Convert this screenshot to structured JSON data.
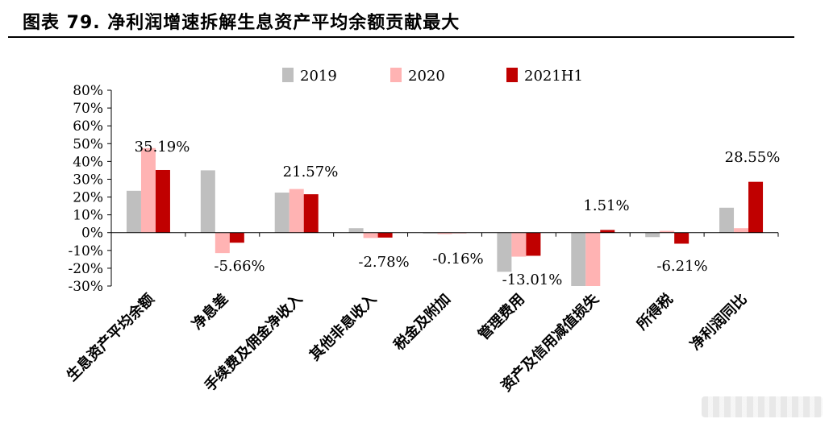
{
  "title": "图表 79. 净利润增速拆解生息资产平均余额贡献最大",
  "chart_data": {
    "type": "bar",
    "categories": [
      "生息资产平均余额",
      "净息差",
      "手续费及佣金净收入",
      "其他非息收入",
      "税金及附加",
      "管理费用",
      "资产及信用减值损失",
      "所得税",
      "净利润同比"
    ],
    "series": [
      {
        "name": "2019",
        "color": "#bfbfbf",
        "values": [
          23.5,
          35.0,
          22.5,
          2.5,
          -0.5,
          -22.0,
          -30.0,
          -2.5,
          14.0
        ]
      },
      {
        "name": "2020",
        "color": "#ffb3b3",
        "values": [
          47.5,
          -11.5,
          24.5,
          -3.0,
          -0.8,
          -13.5,
          -30.0,
          1.0,
          2.5
        ]
      },
      {
        "name": "2021H1",
        "color": "#c00000",
        "values": [
          35.19,
          -5.66,
          21.57,
          -2.78,
          -0.16,
          -13.01,
          1.51,
          -6.21,
          28.55
        ]
      }
    ],
    "yticks": [
      "80%",
      "70%",
      "60%",
      "50%",
      "40%",
      "30%",
      "20%",
      "10%",
      "0%",
      "-10%",
      "-20%",
      "-30%"
    ],
    "ylim": [
      -30,
      80
    ],
    "annotations": [
      {
        "label": "35.19%",
        "category": 0,
        "value": 35.19
      },
      {
        "label": "-5.66%",
        "category": 1,
        "value": -5.66
      },
      {
        "label": "21.57%",
        "category": 2,
        "value": 21.57
      },
      {
        "label": "-2.78%",
        "category": 3,
        "value": -2.78
      },
      {
        "label": "-0.16%",
        "category": 4,
        "value": -0.16
      },
      {
        "label": "-13.01%",
        "category": 5,
        "value": -13.01
      },
      {
        "label": "1.51%",
        "category": 6,
        "value": 1.51
      },
      {
        "label": "-6.21%",
        "category": 7,
        "value": -6.21
      },
      {
        "label": "28.55%",
        "category": 8,
        "value": 28.55
      }
    ],
    "legend_position": "top-center",
    "grid": false
  }
}
